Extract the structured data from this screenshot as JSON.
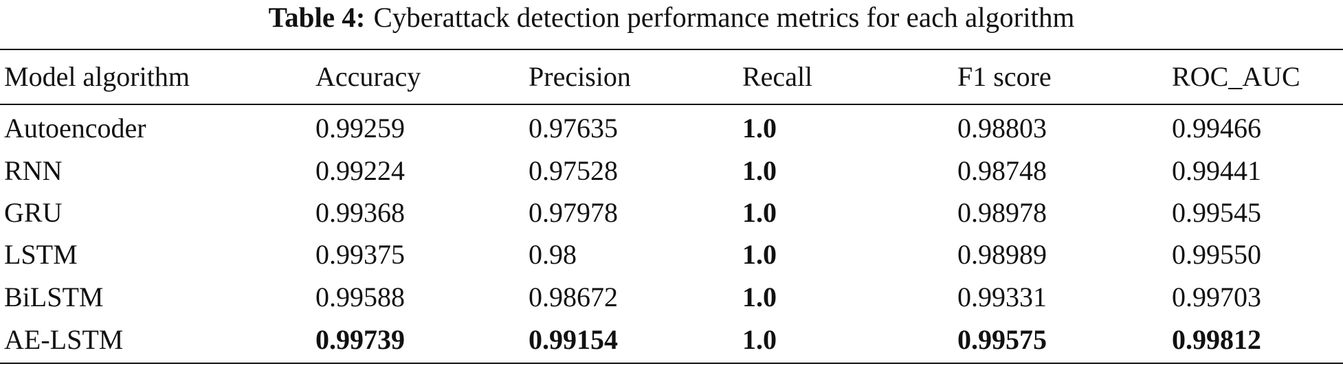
{
  "caption": {
    "label": "Table 4:",
    "text": "Cyberattack detection performance metrics for each algorithm"
  },
  "table": {
    "header": [
      "Model algorithm",
      "Accuracy",
      "Precision",
      "Recall",
      "F1 score",
      "ROC_AUC"
    ],
    "rows": [
      [
        "Autoencoder",
        "0.99259",
        "0.97635",
        "1.0",
        "0.98803",
        "0.99466"
      ],
      [
        "RNN",
        "0.99224",
        "0.97528",
        "1.0",
        "0.98748",
        "0.99441"
      ],
      [
        "GRU",
        "0.99368",
        "0.97978",
        "1.0",
        "0.98978",
        "0.99545"
      ],
      [
        "LSTM",
        "0.99375",
        "0.98",
        "1.0",
        "0.98989",
        "0.99550"
      ],
      [
        "BiLSTM",
        "0.99588",
        "0.98672",
        "1.0",
        "0.99331",
        "0.99703"
      ],
      [
        "AE-LSTM",
        "0.99739",
        "0.99154",
        "1.0",
        "0.99575",
        "0.99812"
      ]
    ]
  }
}
